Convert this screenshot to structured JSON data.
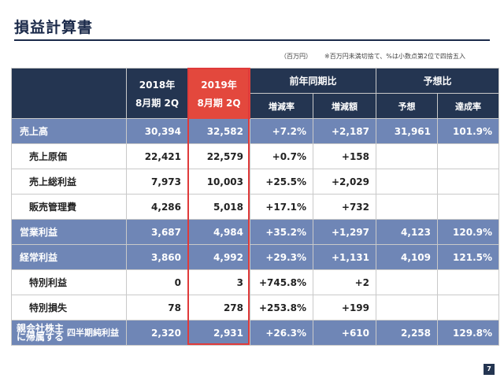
{
  "title": "損益計算書",
  "unit_note": "（百万円）",
  "rounding_note": "※百万円未満切捨て、%は小数点第2位で四捨五入",
  "header": {
    "col_2018": [
      "2018年",
      "8月期 2Q"
    ],
    "col_2019": [
      "2019年",
      "8月期 2Q"
    ],
    "yoy_group": "前年同期比",
    "forecast_group": "予想比",
    "yoy_rate": "増減率",
    "yoy_amount": "増減額",
    "forecast": "予想",
    "achievement": "達成率"
  },
  "rows": [
    {
      "label": "売上高",
      "v2018": "30,394",
      "v2019": "32,582",
      "rate": "+7.2%",
      "amount": "+2,187",
      "forecast": "31,961",
      "achievement": "101.9%"
    },
    {
      "label": "売上原価",
      "v2018": "22,421",
      "v2019": "22,579",
      "rate": "+0.7%",
      "amount": "+158",
      "forecast": "",
      "achievement": ""
    },
    {
      "label": "売上総利益",
      "v2018": "7,973",
      "v2019": "10,003",
      "rate": "+25.5%",
      "amount": "+2,029",
      "forecast": "",
      "achievement": ""
    },
    {
      "label": "販売管理費",
      "v2018": "4,286",
      "v2019": "5,018",
      "rate": "+17.1%",
      "amount": "+732",
      "forecast": "",
      "achievement": ""
    },
    {
      "label": "営業利益",
      "v2018": "3,687",
      "v2019": "4,984",
      "rate": "+35.2%",
      "amount": "+1,297",
      "forecast": "4,123",
      "achievement": "120.9%"
    },
    {
      "label": "経常利益",
      "v2018": "3,860",
      "v2019": "4,992",
      "rate": "+29.3%",
      "amount": "+1,131",
      "forecast": "4,109",
      "achievement": "121.5%"
    },
    {
      "label": "特別利益",
      "v2018": "0",
      "v2019": "3",
      "rate": "+745.8%",
      "amount": "+2",
      "forecast": "",
      "achievement": ""
    },
    {
      "label": "特別損失",
      "v2018": "78",
      "v2019": "278",
      "rate": "+253.8%",
      "amount": "+199",
      "forecast": "",
      "achievement": ""
    },
    {
      "label_small": [
        "親会社株主",
        "に帰属する"
      ],
      "label": "四半期純利益",
      "v2018": "2,320",
      "v2019": "2,931",
      "rate": "+26.3%",
      "amount": "+610",
      "forecast": "2,258",
      "achievement": "129.8%"
    }
  ],
  "page_number": "7",
  "colors": {
    "navy": "#243551",
    "highlight_row": "#6f86b6",
    "accent_red": "#e3483d"
  }
}
